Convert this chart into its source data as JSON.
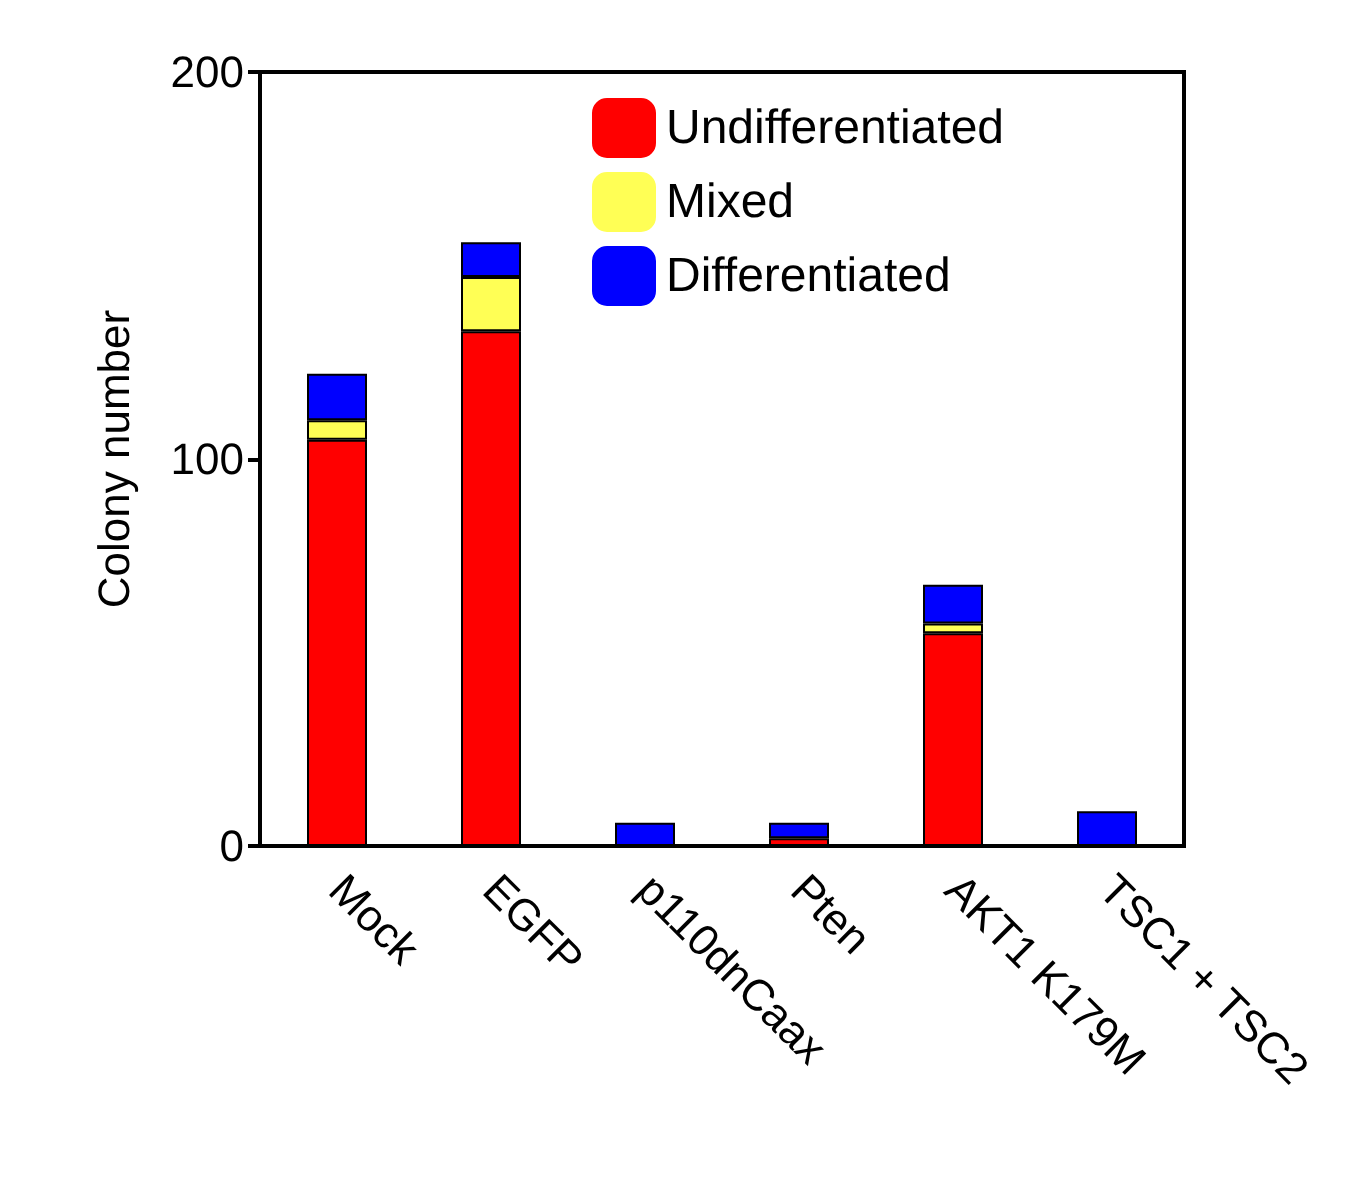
{
  "chart_data": {
    "type": "bar",
    "stacked": true,
    "ylabel": "Colony number",
    "categories": [
      "Mock",
      "EGFP",
      "p110dnCaax",
      "Pten",
      "AKT1 K179M",
      "TSC1 + TSC2"
    ],
    "series": [
      {
        "name": "Undifferentiated",
        "color": "#ff0000",
        "values": [
          105,
          133,
          null,
          2,
          55,
          null
        ]
      },
      {
        "name": "Mixed",
        "color": "#ffff55",
        "values": [
          5,
          14,
          null,
          null,
          2.5,
          null
        ]
      },
      {
        "name": "Differentiated",
        "color": "#0000ff",
        "values": [
          12,
          9,
          6,
          4,
          10,
          9
        ]
      }
    ],
    "ylim": [
      0,
      200
    ],
    "yticks": [
      0,
      100,
      200
    ],
    "grid": false,
    "legend": "top right"
  }
}
